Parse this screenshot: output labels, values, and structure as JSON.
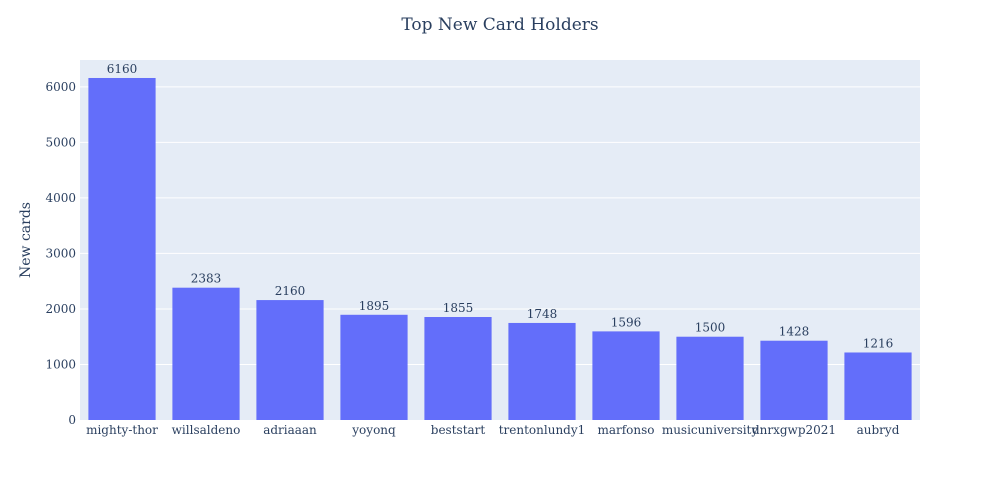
{
  "chart_data": {
    "type": "bar",
    "title": "Top New Card Holders",
    "xlabel": "",
    "ylabel": "New cards",
    "categories": [
      "mighty-thor",
      "willsaldeno",
      "adriaaan",
      "yoyonq",
      "beststart",
      "trentonlundy1",
      "marfonso",
      "musicuniversity",
      "dnrxgwp2021",
      "aubryd"
    ],
    "values": [
      6160,
      2383,
      2160,
      1895,
      1855,
      1748,
      1596,
      1500,
      1428,
      1216
    ],
    "ylim": [
      0,
      6484
    ],
    "yticks": [
      0,
      1000,
      2000,
      3000,
      4000,
      5000,
      6000
    ],
    "grid": true,
    "legend": "none",
    "colors": {
      "bar": "#636efa",
      "plot_bg": "#e5ecf6",
      "grid": "#ffffff",
      "text": "#2a3f5f"
    }
  }
}
